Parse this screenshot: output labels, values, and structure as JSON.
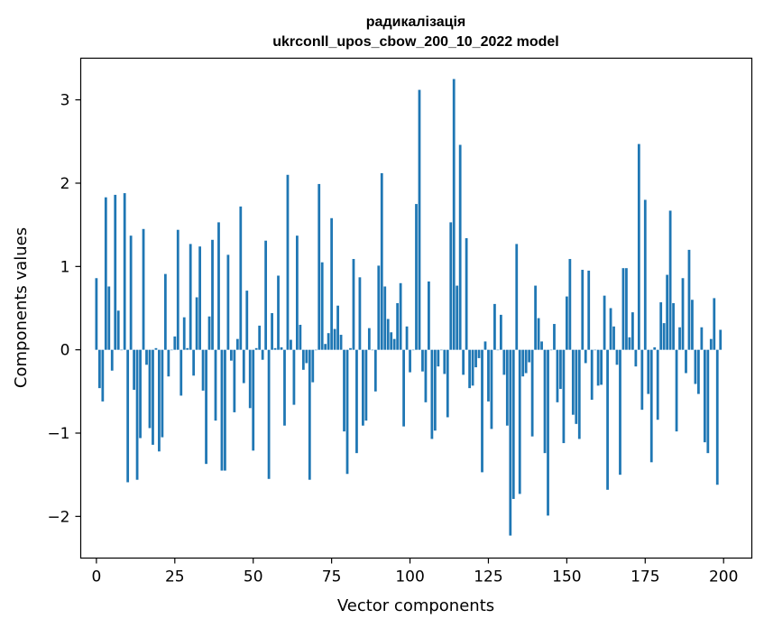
{
  "chart_data": {
    "type": "bar",
    "title": "радикалізація",
    "subtitle": "ukrconll_upos_cbow_200_10_2022 model",
    "xlabel": "Vector components",
    "ylabel": "Components values",
    "xlim": [
      -5,
      209
    ],
    "ylim": [
      -2.5,
      3.5
    ],
    "x_ticks": [
      0,
      25,
      50,
      75,
      100,
      125,
      150,
      175,
      200
    ],
    "x_tick_labels": [
      "0",
      "25",
      "50",
      "75",
      "100",
      "125",
      "150",
      "175",
      "200"
    ],
    "y_ticks": [
      -2,
      -1,
      0,
      1,
      2,
      3
    ],
    "y_tick_labels": [
      "−2",
      "−1",
      "0",
      "1",
      "2",
      "3"
    ],
    "bar_color": "#1f77b4",
    "grid": false,
    "legend": "none",
    "values": [
      0.86,
      -0.46,
      -0.62,
      1.83,
      0.76,
      -0.25,
      1.86,
      0.47,
      0.0,
      1.88,
      -1.59,
      1.37,
      -0.48,
      -1.56,
      -1.06,
      1.45,
      -0.18,
      -0.94,
      -1.14,
      0.02,
      -1.22,
      -1.05,
      0.91,
      -0.32,
      0.0,
      0.16,
      1.44,
      -0.55,
      0.39,
      0.02,
      1.27,
      -0.31,
      0.63,
      1.24,
      -0.49,
      -1.37,
      0.4,
      1.32,
      -0.85,
      1.53,
      -1.45,
      -1.45,
      1.14,
      -0.13,
      -0.75,
      0.13,
      1.72,
      -0.4,
      0.71,
      -0.7,
      -1.21,
      0.02,
      0.29,
      -0.12,
      1.31,
      -1.55,
      0.44,
      0.02,
      0.89,
      0.03,
      -0.91,
      2.1,
      0.12,
      -0.66,
      1.37,
      0.3,
      -0.24,
      -0.16,
      -1.56,
      -0.39,
      0.0,
      1.99,
      1.05,
      0.07,
      0.2,
      1.58,
      0.25,
      0.53,
      0.18,
      -0.98,
      -1.49,
      0.02,
      1.09,
      -1.24,
      0.87,
      -0.91,
      -0.85,
      0.26,
      0.0,
      -0.5,
      1.01,
      2.12,
      0.76,
      0.37,
      0.21,
      0.13,
      0.56,
      0.8,
      -0.92,
      0.28,
      -0.27,
      0.0,
      1.75,
      3.12,
      -0.26,
      -0.63,
      0.82,
      -1.07,
      -0.97,
      -0.2,
      0.0,
      -0.29,
      -0.81,
      1.53,
      3.25,
      0.77,
      2.46,
      -0.3,
      1.34,
      -0.46,
      -0.43,
      -0.21,
      -0.1,
      -1.47,
      0.1,
      -0.62,
      -0.95,
      0.55,
      0.0,
      0.42,
      -0.3,
      -0.91,
      -2.23,
      -1.79,
      1.27,
      -1.73,
      -0.32,
      -0.28,
      -0.15,
      -1.04,
      0.77,
      0.38,
      0.1,
      -1.24,
      -1.99,
      0.0,
      0.31,
      -0.63,
      -0.47,
      -1.12,
      0.64,
      1.09,
      -0.78,
      -0.89,
      -1.07,
      0.96,
      -0.16,
      0.95,
      -0.6,
      0.0,
      -0.43,
      -0.42,
      0.65,
      -1.68,
      0.5,
      0.28,
      -0.18,
      -1.5,
      0.98,
      0.98,
      0.15,
      0.45,
      -0.2,
      2.47,
      -0.72,
      1.8,
      -0.53,
      -1.35,
      0.03,
      -0.84,
      0.57,
      0.32,
      0.9,
      1.67,
      0.56,
      -0.98,
      0.27,
      0.86,
      -0.28,
      1.2,
      0.6,
      -0.41,
      -0.53,
      0.27,
      -1.11,
      -1.24,
      0.13,
      0.62,
      -1.62,
      0.24
    ]
  }
}
